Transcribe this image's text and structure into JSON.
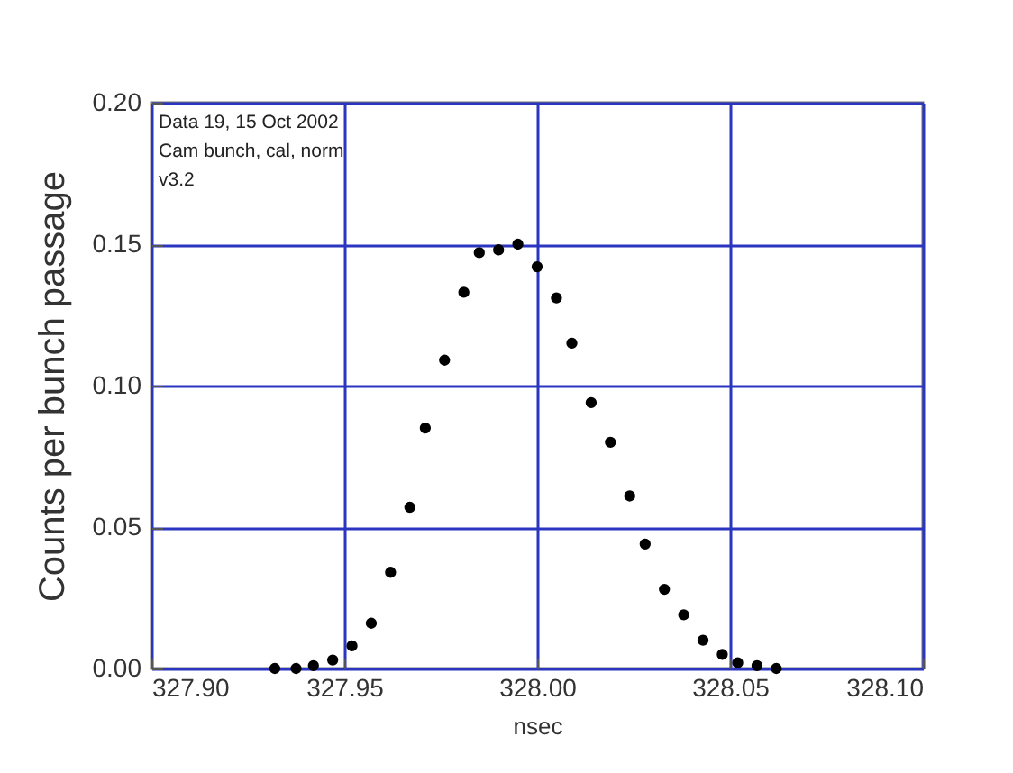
{
  "chart_data": {
    "type": "scatter",
    "xlabel": "nsec",
    "ylabel": "Counts per bunch passage",
    "annotations": [
      "Data 19, 15 Oct 2002",
      "Cam bunch, cal, norm",
      "v3.2"
    ],
    "x": [
      327.932,
      327.9375,
      327.942,
      327.947,
      327.952,
      327.957,
      327.962,
      327.967,
      327.971,
      327.976,
      327.981,
      327.985,
      327.99,
      327.995,
      328.0,
      328.005,
      328.009,
      328.014,
      328.019,
      328.024,
      328.028,
      328.033,
      328.038,
      328.043,
      328.048,
      328.052,
      328.057,
      328.062
    ],
    "series": [
      {
        "color": "#000000",
        "values": [
          0.0,
          0.0,
          0.001,
          0.003,
          0.008,
          0.016,
          0.034,
          0.057,
          0.085,
          0.109,
          0.133,
          0.147,
          0.148,
          0.15,
          0.142,
          0.131,
          0.115,
          0.094,
          0.08,
          0.061,
          0.044,
          0.028,
          0.019,
          0.01,
          0.005,
          0.002,
          0.001,
          0.0
        ]
      }
    ],
    "xlim": [
      327.9,
      328.1
    ],
    "xticks": [
      {
        "value": 327.9,
        "label": "327.90"
      },
      {
        "value": 327.95,
        "label": "327.95"
      },
      {
        "value": 328.0,
        "label": "328.00"
      },
      {
        "value": 328.05,
        "label": "328.05"
      },
      {
        "value": 328.1,
        "label": "328.10"
      }
    ],
    "ylim": [
      0,
      0.2
    ],
    "yticks": [
      {
        "value": 0,
        "label": "0.00"
      },
      {
        "value": 0.05,
        "label": "0.05"
      },
      {
        "value": 0.1,
        "label": "0.10"
      },
      {
        "value": 0.15,
        "label": "0.15"
      },
      {
        "value": 0.2,
        "label": "0.20"
      }
    ],
    "grid": true,
    "marker": "circle"
  }
}
